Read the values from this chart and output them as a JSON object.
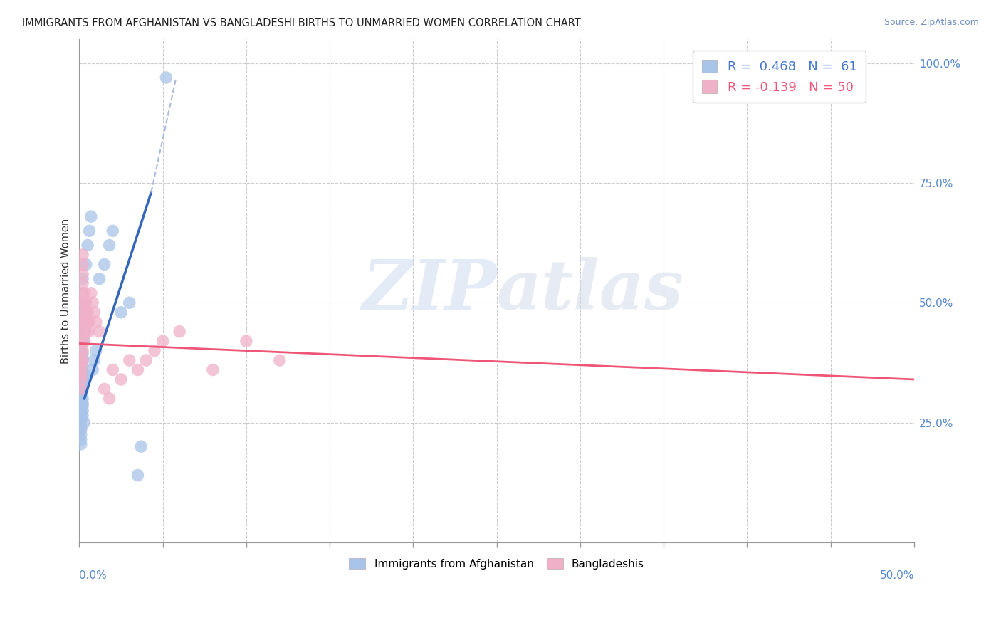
{
  "title": "IMMIGRANTS FROM AFGHANISTAN VS BANGLADESHI BIRTHS TO UNMARRIED WOMEN CORRELATION CHART",
  "source": "Source: ZipAtlas.com",
  "ylabel": "Births to Unmarried Women",
  "xlim": [
    0.0,
    0.5
  ],
  "ylim": [
    0.0,
    1.05
  ],
  "yticks": [
    0.25,
    0.5,
    0.75,
    1.0
  ],
  "ytick_labels": [
    "25.0%",
    "50.0%",
    "75.0%",
    "100.0%"
  ],
  "xtick_labels": [
    "0.0%",
    "50.0%"
  ],
  "legend_r1_text": "R =  0.468   N =  61",
  "legend_r2_text": "R = -0.139   N = 50",
  "blue_color": "#A8C4E8",
  "pink_color": "#F0B0C8",
  "blue_line_color": "#3366BB",
  "pink_line_color": "#EE5577",
  "watermark_zip": "ZIP",
  "watermark_atlas": "atlas",
  "blue_trendline_solid": [
    [
      0.003,
      0.3
    ],
    [
      0.043,
      0.73
    ]
  ],
  "blue_trendline_dashed": [
    [
      0.043,
      0.73
    ],
    [
      0.058,
      0.97
    ]
  ],
  "pink_trendline": [
    [
      0.0,
      0.415
    ],
    [
      0.5,
      0.34
    ]
  ],
  "blue_scatter": [
    [
      0.001,
      0.295
    ],
    [
      0.001,
      0.31
    ],
    [
      0.001,
      0.285
    ],
    [
      0.001,
      0.27
    ],
    [
      0.001,
      0.305
    ],
    [
      0.001,
      0.315
    ],
    [
      0.001,
      0.325
    ],
    [
      0.001,
      0.33
    ],
    [
      0.001,
      0.29
    ],
    [
      0.001,
      0.345
    ],
    [
      0.001,
      0.36
    ],
    [
      0.001,
      0.375
    ],
    [
      0.001,
      0.38
    ],
    [
      0.001,
      0.355
    ],
    [
      0.001,
      0.365
    ],
    [
      0.001,
      0.395
    ],
    [
      0.001,
      0.28
    ],
    [
      0.001,
      0.27
    ],
    [
      0.001,
      0.26
    ],
    [
      0.001,
      0.255
    ],
    [
      0.001,
      0.24
    ],
    [
      0.001,
      0.235
    ],
    [
      0.001,
      0.225
    ],
    [
      0.001,
      0.215
    ],
    [
      0.001,
      0.205
    ],
    [
      0.002,
      0.3
    ],
    [
      0.002,
      0.32
    ],
    [
      0.002,
      0.34
    ],
    [
      0.002,
      0.355
    ],
    [
      0.002,
      0.37
    ],
    [
      0.002,
      0.385
    ],
    [
      0.002,
      0.395
    ],
    [
      0.002,
      0.29
    ],
    [
      0.002,
      0.285
    ],
    [
      0.002,
      0.275
    ],
    [
      0.002,
      0.265
    ],
    [
      0.003,
      0.42
    ],
    [
      0.003,
      0.44
    ],
    [
      0.003,
      0.46
    ],
    [
      0.003,
      0.48
    ],
    [
      0.003,
      0.5
    ],
    [
      0.003,
      0.35
    ],
    [
      0.003,
      0.34
    ],
    [
      0.003,
      0.25
    ],
    [
      0.004,
      0.58
    ],
    [
      0.005,
      0.62
    ],
    [
      0.006,
      0.65
    ],
    [
      0.007,
      0.68
    ],
    [
      0.008,
      0.36
    ],
    [
      0.009,
      0.38
    ],
    [
      0.01,
      0.4
    ],
    [
      0.012,
      0.55
    ],
    [
      0.015,
      0.58
    ],
    [
      0.018,
      0.62
    ],
    [
      0.02,
      0.65
    ],
    [
      0.025,
      0.48
    ],
    [
      0.03,
      0.5
    ],
    [
      0.035,
      0.14
    ],
    [
      0.037,
      0.2
    ],
    [
      0.052,
      0.97
    ],
    [
      0.002,
      0.55
    ]
  ],
  "pink_scatter": [
    [
      0.001,
      0.32
    ],
    [
      0.001,
      0.34
    ],
    [
      0.001,
      0.36
    ],
    [
      0.001,
      0.38
    ],
    [
      0.001,
      0.4
    ],
    [
      0.001,
      0.42
    ],
    [
      0.001,
      0.44
    ],
    [
      0.001,
      0.46
    ],
    [
      0.001,
      0.35
    ],
    [
      0.001,
      0.37
    ],
    [
      0.002,
      0.5
    ],
    [
      0.002,
      0.52
    ],
    [
      0.002,
      0.54
    ],
    [
      0.002,
      0.56
    ],
    [
      0.002,
      0.58
    ],
    [
      0.002,
      0.6
    ],
    [
      0.002,
      0.38
    ],
    [
      0.002,
      0.4
    ],
    [
      0.003,
      0.44
    ],
    [
      0.003,
      0.46
    ],
    [
      0.003,
      0.48
    ],
    [
      0.003,
      0.5
    ],
    [
      0.003,
      0.52
    ],
    [
      0.003,
      0.42
    ],
    [
      0.004,
      0.44
    ],
    [
      0.004,
      0.46
    ],
    [
      0.004,
      0.48
    ],
    [
      0.004,
      0.5
    ],
    [
      0.005,
      0.46
    ],
    [
      0.005,
      0.48
    ],
    [
      0.006,
      0.44
    ],
    [
      0.006,
      0.46
    ],
    [
      0.007,
      0.52
    ],
    [
      0.008,
      0.5
    ],
    [
      0.009,
      0.48
    ],
    [
      0.01,
      0.46
    ],
    [
      0.012,
      0.44
    ],
    [
      0.015,
      0.32
    ],
    [
      0.018,
      0.3
    ],
    [
      0.02,
      0.36
    ],
    [
      0.025,
      0.34
    ],
    [
      0.03,
      0.38
    ],
    [
      0.035,
      0.36
    ],
    [
      0.04,
      0.38
    ],
    [
      0.045,
      0.4
    ],
    [
      0.05,
      0.42
    ],
    [
      0.06,
      0.44
    ],
    [
      0.08,
      0.36
    ],
    [
      0.1,
      0.42
    ],
    [
      0.12,
      0.38
    ]
  ]
}
